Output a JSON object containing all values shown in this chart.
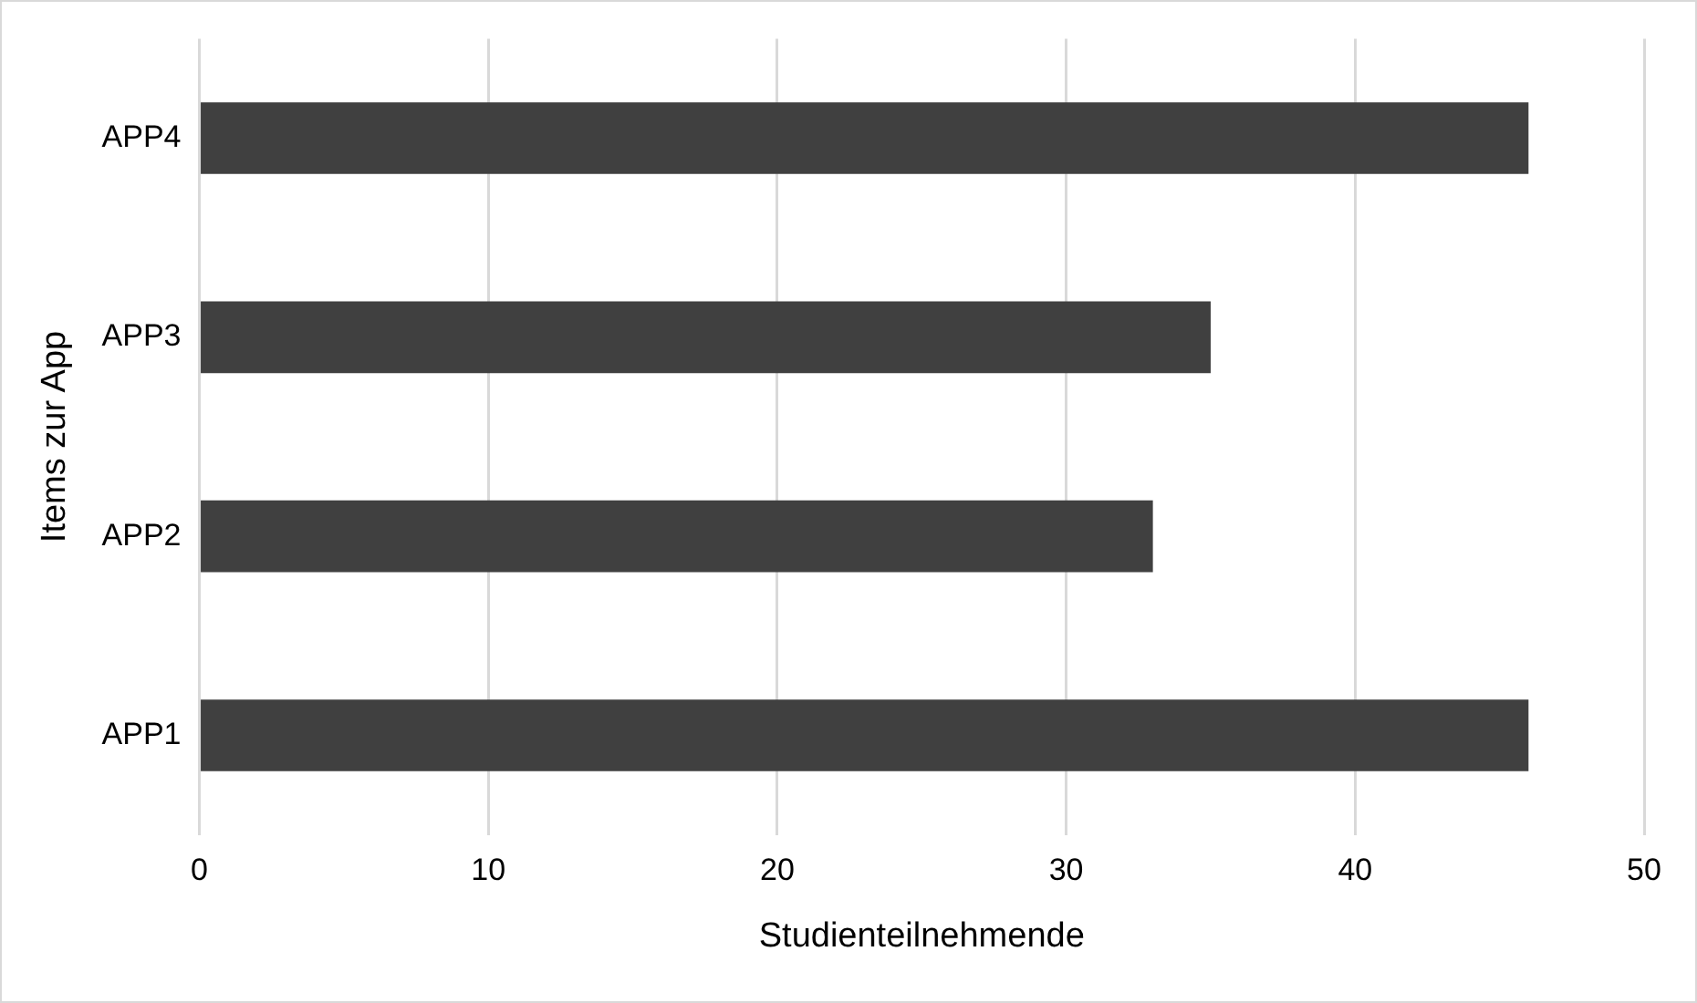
{
  "chart_data": {
    "type": "bar",
    "orientation": "horizontal",
    "categories": [
      "APP4",
      "APP3",
      "APP2",
      "APP1"
    ],
    "values": [
      46,
      35,
      33,
      46
    ],
    "color": "#404040",
    "xlim": [
      0,
      50
    ],
    "xticks": [
      0,
      10,
      20,
      30,
      40,
      50
    ],
    "grid": "x",
    "xlabel": "Studienteilnehmende",
    "ylabel": "Items zur App"
  }
}
